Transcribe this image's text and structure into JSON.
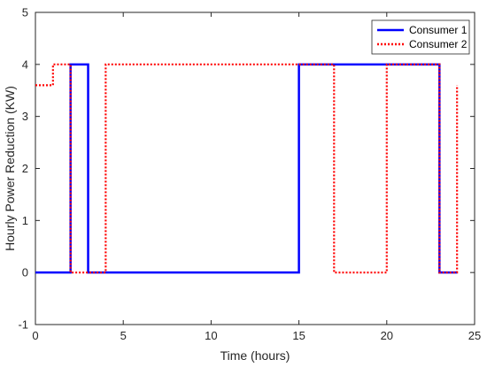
{
  "chart_data": {
    "type": "line",
    "title": "",
    "xlabel": "Time (hours)",
    "ylabel": "Hourly Power Reduction (KW)",
    "xlim": [
      0,
      25
    ],
    "ylim": [
      -1,
      5
    ],
    "xticks": [
      0,
      5,
      10,
      15,
      20,
      25
    ],
    "yticks": [
      -1,
      0,
      1,
      2,
      3,
      4,
      5
    ],
    "grid": false,
    "legend_position": "top-right",
    "series": [
      {
        "name": "Consumer 1",
        "color": "#0000ff",
        "style": "solid",
        "x": [
          0,
          2,
          2,
          3,
          3,
          15,
          15,
          23,
          23,
          24
        ],
        "y": [
          0,
          0,
          4,
          4,
          0,
          0,
          4,
          4,
          0,
          0
        ]
      },
      {
        "name": "Consumer 2",
        "color": "#ff0000",
        "style": "dotted",
        "x": [
          0,
          1,
          1,
          2,
          2,
          4,
          4,
          17,
          17,
          20,
          20,
          23,
          23,
          24,
          24
        ],
        "y": [
          3.6,
          3.6,
          4,
          4,
          0,
          0,
          4,
          4,
          0,
          0,
          4,
          4,
          0,
          0,
          3.6
        ]
      }
    ]
  }
}
